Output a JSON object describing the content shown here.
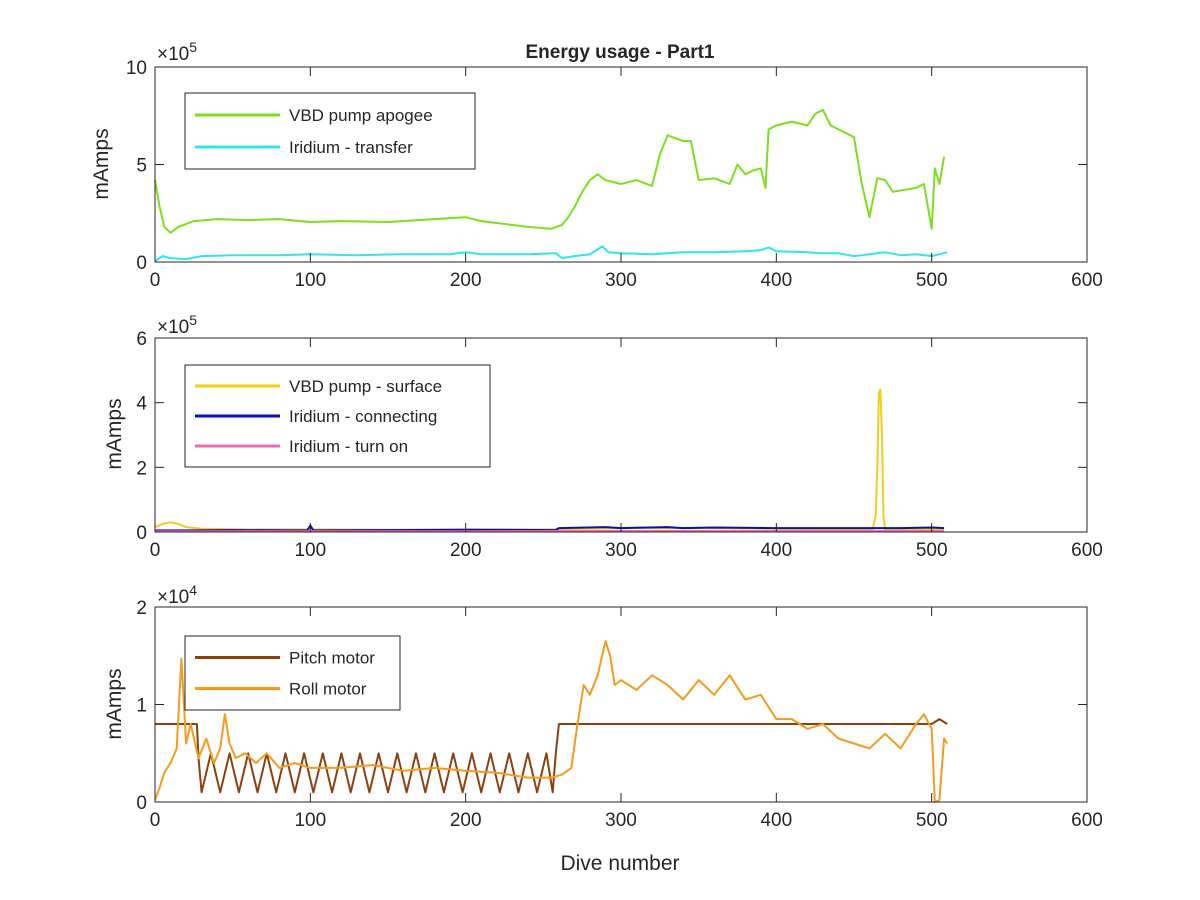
{
  "figure": {
    "title": "Energy usage - Part1",
    "colors": {
      "axis": "#262626",
      "background": "#ffffff"
    }
  },
  "chart_data": [
    {
      "type": "line",
      "title": "Energy usage - Part1",
      "xlabel": "",
      "ylabel": "mAmps",
      "xlim": [
        0,
        600
      ],
      "ylim": [
        0,
        1000000
      ],
      "exponent_label": "×10",
      "exponent_power": "5",
      "x_ticks": [
        0,
        100,
        200,
        300,
        400,
        500,
        600
      ],
      "x_tick_labels": [
        "0",
        "100",
        "200",
        "300",
        "400",
        "500",
        "600"
      ],
      "y_ticks": [
        0,
        500000,
        1000000
      ],
      "y_tick_labels": [
        "0",
        "5",
        "10"
      ],
      "grid": false,
      "legend_position": "top-left",
      "series": [
        {
          "name": "VBD pump apogee",
          "color": "#7ddf1c",
          "x": [
            0,
            3,
            6,
            10,
            15,
            25,
            40,
            60,
            80,
            100,
            120,
            150,
            180,
            190,
            200,
            210,
            220,
            240,
            255,
            262,
            266,
            270,
            275,
            280,
            285,
            290,
            300,
            310,
            320,
            325,
            330,
            340,
            345,
            350,
            360,
            370,
            375,
            380,
            385,
            390,
            393,
            395,
            400,
            410,
            420,
            425,
            430,
            435,
            440,
            450,
            455,
            460,
            465,
            470,
            475,
            490,
            495,
            500,
            502,
            505,
            508
          ],
          "y": [
            420000,
            280000,
            180000,
            150000,
            180000,
            210000,
            220000,
            215000,
            220000,
            205000,
            210000,
            205000,
            220000,
            225000,
            230000,
            210000,
            200000,
            180000,
            170000,
            190000,
            230000,
            280000,
            360000,
            420000,
            450000,
            420000,
            400000,
            420000,
            390000,
            550000,
            650000,
            620000,
            620000,
            420000,
            430000,
            400000,
            500000,
            450000,
            470000,
            480000,
            380000,
            680000,
            700000,
            720000,
            700000,
            760000,
            780000,
            700000,
            680000,
            640000,
            400000,
            230000,
            430000,
            420000,
            360000,
            380000,
            400000,
            170000,
            480000,
            400000,
            540000
          ]
        },
        {
          "name": "Iridium - transfer",
          "color": "#2fe6ef",
          "x": [
            0,
            5,
            10,
            20,
            30,
            50,
            80,
            100,
            130,
            160,
            190,
            200,
            210,
            240,
            258,
            262,
            270,
            280,
            288,
            292,
            300,
            320,
            340,
            360,
            380,
            390,
            395,
            400,
            420,
            430,
            440,
            450,
            460,
            470,
            480,
            490,
            500,
            505,
            510
          ],
          "y": [
            5000,
            30000,
            20000,
            15000,
            30000,
            35000,
            35000,
            40000,
            35000,
            40000,
            40000,
            50000,
            40000,
            40000,
            45000,
            20000,
            30000,
            40000,
            80000,
            50000,
            45000,
            40000,
            50000,
            50000,
            55000,
            60000,
            75000,
            55000,
            50000,
            45000,
            45000,
            30000,
            40000,
            50000,
            35000,
            40000,
            30000,
            40000,
            50000
          ]
        }
      ]
    },
    {
      "type": "line",
      "title": "",
      "xlabel": "",
      "ylabel": "mAmps",
      "xlim": [
        0,
        600
      ],
      "ylim": [
        0,
        600000
      ],
      "exponent_label": "×10",
      "exponent_power": "5",
      "x_ticks": [
        0,
        100,
        200,
        300,
        400,
        500,
        600
      ],
      "x_tick_labels": [
        "0",
        "100",
        "200",
        "300",
        "400",
        "500",
        "600"
      ],
      "y_ticks": [
        0,
        200000,
        400000,
        600000
      ],
      "y_tick_labels": [
        "0",
        "2",
        "4",
        "6"
      ],
      "grid": false,
      "legend_position": "top-left",
      "series": [
        {
          "name": "VBD pump - surface",
          "color": "#f2cd1a",
          "x": [
            0,
            5,
            10,
            15,
            20,
            30,
            60,
            100,
            150,
            200,
            250,
            300,
            350,
            400,
            450,
            462,
            464,
            465,
            466,
            467,
            468,
            469,
            470,
            480,
            500,
            508
          ],
          "y": [
            15000,
            25000,
            30000,
            25000,
            15000,
            10000,
            8000,
            8000,
            7000,
            8000,
            8000,
            12000,
            12000,
            10000,
            8000,
            8000,
            50000,
            200000,
            430000,
            440000,
            300000,
            50000,
            8000,
            8000,
            8000,
            8000
          ]
        },
        {
          "name": "Iridium - connecting",
          "color": "#0c0cbf",
          "x": [
            0,
            20,
            50,
            98,
            100,
            102,
            150,
            200,
            258,
            260,
            290,
            300,
            330,
            340,
            360,
            400,
            430,
            460,
            480,
            500,
            508
          ],
          "y": [
            5000,
            5000,
            6000,
            5000,
            20000,
            5000,
            6000,
            7000,
            6000,
            12000,
            15000,
            12000,
            15000,
            12000,
            14000,
            12000,
            12000,
            12000,
            12000,
            14000,
            12000
          ]
        },
        {
          "name": "Iridium - turn on",
          "color": "#f06ab0",
          "x": [
            0,
            100,
            200,
            300,
            400,
            500,
            508
          ],
          "y": [
            2000,
            2500,
            2500,
            3000,
            3000,
            3000,
            3000
          ]
        }
      ]
    },
    {
      "type": "line",
      "title": "",
      "xlabel": "Dive number",
      "ylabel": "mAmps",
      "xlim": [
        0,
        600
      ],
      "ylim": [
        0,
        20000
      ],
      "exponent_label": "×10",
      "exponent_power": "4",
      "x_ticks": [
        0,
        100,
        200,
        300,
        400,
        500,
        600
      ],
      "x_tick_labels": [
        "0",
        "100",
        "200",
        "300",
        "400",
        "500",
        "600"
      ],
      "y_ticks": [
        0,
        10000,
        20000
      ],
      "y_tick_labels": [
        "0",
        "1",
        "2"
      ],
      "grid": false,
      "legend_position": "top-left",
      "series": [
        {
          "name": "Pitch motor",
          "color": "#8b4010",
          "x": [
            0,
            27,
            28,
            30,
            36,
            42,
            48,
            54,
            60,
            66,
            72,
            78,
            84,
            90,
            96,
            102,
            108,
            114,
            120,
            126,
            132,
            138,
            144,
            150,
            156,
            162,
            168,
            174,
            180,
            186,
            192,
            198,
            204,
            210,
            216,
            222,
            228,
            234,
            240,
            246,
            252,
            256,
            258,
            260,
            300,
            350,
            400,
            450,
            500,
            505,
            510
          ],
          "y": [
            8000,
            8000,
            4500,
            1000,
            5000,
            1000,
            5000,
            1000,
            5000,
            1000,
            5000,
            1000,
            5000,
            1000,
            5000,
            1000,
            5000,
            1000,
            5000,
            1000,
            5000,
            1000,
            5000,
            1000,
            5000,
            1000,
            5000,
            1000,
            5000,
            1000,
            5000,
            1000,
            5000,
            1000,
            5000,
            1000,
            5000,
            1000,
            5000,
            1000,
            5000,
            1000,
            5000,
            8000,
            8000,
            8000,
            8000,
            8000,
            8000,
            8500,
            8000
          ]
        },
        {
          "name": "Roll motor",
          "color": "#f39b1e",
          "x": [
            0,
            3,
            6,
            10,
            14,
            17,
            20,
            23,
            28,
            33,
            38,
            42,
            45,
            48,
            52,
            58,
            65,
            72,
            80,
            90,
            100,
            120,
            140,
            160,
            180,
            200,
            220,
            240,
            255,
            262,
            268,
            272,
            276,
            280,
            285,
            290,
            293,
            296,
            300,
            310,
            320,
            330,
            340,
            350,
            360,
            370,
            380,
            390,
            400,
            410,
            420,
            430,
            440,
            450,
            460,
            470,
            480,
            490,
            495,
            500,
            502,
            505,
            508,
            510
          ],
          "y": [
            200,
            1500,
            3000,
            4000,
            5500,
            14700,
            6000,
            8000,
            4500,
            6500,
            4000,
            5500,
            9000,
            6000,
            4500,
            5000,
            4000,
            5000,
            3500,
            4000,
            3500,
            3500,
            3800,
            3200,
            3500,
            3200,
            3000,
            2500,
            2500,
            2800,
            3500,
            8000,
            12000,
            11000,
            13000,
            16500,
            15000,
            12000,
            12500,
            11500,
            13000,
            12000,
            10500,
            12500,
            11000,
            13000,
            10500,
            11000,
            8500,
            8500,
            7500,
            8000,
            6500,
            6000,
            5500,
            7000,
            5500,
            8000,
            9000,
            7500,
            0,
            200,
            6500,
            6000
          ]
        }
      ]
    }
  ]
}
